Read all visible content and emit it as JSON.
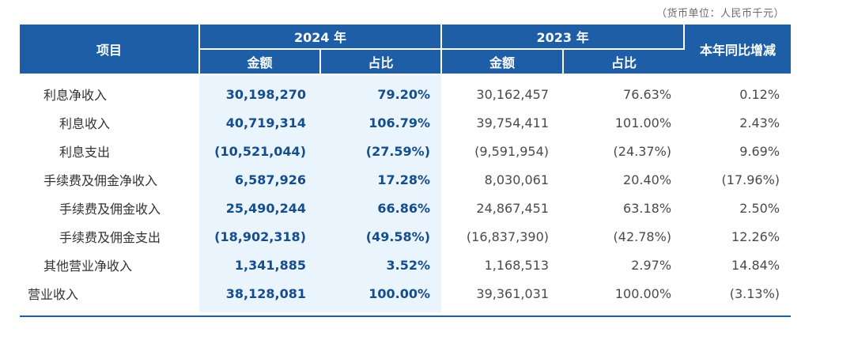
{
  "unit_note": "（货币单位：人民币千元）",
  "header": {
    "item": "项目",
    "year_2024": "2024 年",
    "year_2023": "2023 年",
    "amount": "金额",
    "ratio": "占比",
    "yoy": "本年同比增减"
  },
  "rows": [
    {
      "label": "利息净收入",
      "amt2024": "30,198,270",
      "pct2024": "79.20%",
      "amt2023": "30,162,457",
      "pct2023": "76.63%",
      "yoy": "0.12%"
    },
    {
      "label": "利息收入",
      "amt2024": "40,719,314",
      "pct2024": "106.79%",
      "amt2023": "39,754,411",
      "pct2023": "101.00%",
      "yoy": "2.43%"
    },
    {
      "label": "利息支出",
      "amt2024": "(10,521,044)",
      "pct2024": "(27.59%)",
      "amt2023": "(9,591,954)",
      "pct2023": "(24.37%)",
      "yoy": "9.69%"
    },
    {
      "label": "手续费及佣金净收入",
      "amt2024": "6,587,926",
      "pct2024": "17.28%",
      "amt2023": "8,030,061",
      "pct2023": "20.40%",
      "yoy": "(17.96%)"
    },
    {
      "label": "手续费及佣金收入",
      "amt2024": "25,490,244",
      "pct2024": "66.86%",
      "amt2023": "24,867,451",
      "pct2023": "63.18%",
      "yoy": "2.50%"
    },
    {
      "label": "手续费及佣金支出",
      "amt2024": "(18,902,318)",
      "pct2024": "(49.58%)",
      "amt2023": "(16,837,390)",
      "pct2023": "(42.78%)",
      "yoy": "12.26%"
    },
    {
      "label": "其他营业净收入",
      "amt2024": "1,341,885",
      "pct2024": "3.52%",
      "amt2023": "1,168,513",
      "pct2023": "2.97%",
      "yoy": "14.84%"
    },
    {
      "label": "营业收入",
      "amt2024": "38,128,081",
      "pct2024": "100.00%",
      "amt2023": "39,361,031",
      "pct2023": "100.00%",
      "yoy": "(3.13%)"
    }
  ],
  "colors": {
    "header_bg": "#1d5ea6",
    "highlight_bg": "#eaf4fc",
    "highlight_text": "#164d8c"
  }
}
